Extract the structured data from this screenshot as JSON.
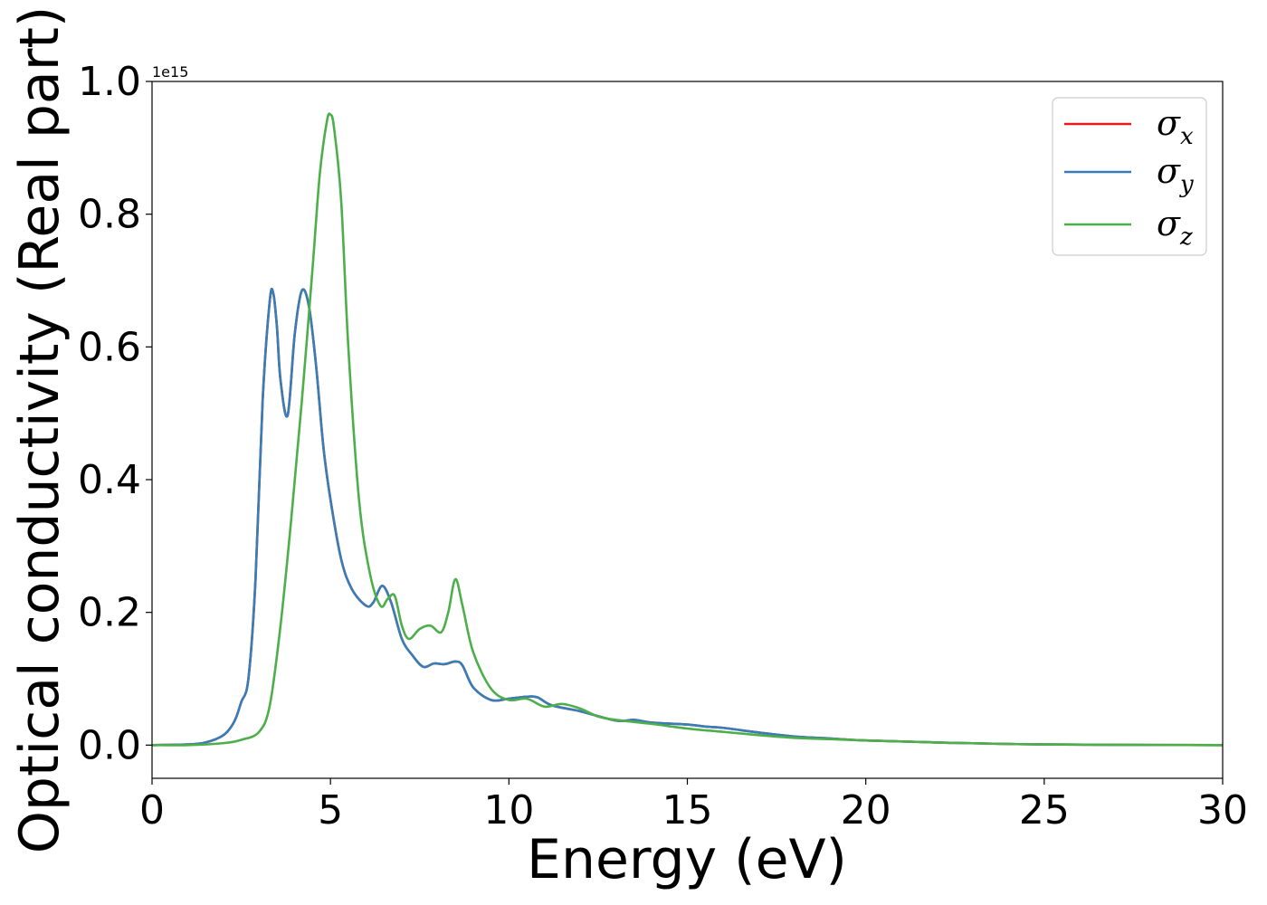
{
  "chart_data": {
    "type": "line",
    "title": "",
    "xlabel": "Energy (eV)",
    "ylabel": "Optical conductivity (Real part)",
    "y_offset_label": "1e15",
    "xlim": [
      0,
      30
    ],
    "ylim": [
      -0.05,
      1.0
    ],
    "xticks": [
      0,
      5,
      10,
      15,
      20,
      25,
      30
    ],
    "yticks": [
      0.0,
      0.2,
      0.4,
      0.6,
      0.8,
      1.0
    ],
    "xtick_labels": [
      "0",
      "5",
      "10",
      "15",
      "20",
      "25",
      "30"
    ],
    "ytick_labels": [
      "0.0",
      "0.2",
      "0.4",
      "0.6",
      "0.8",
      "1.0"
    ],
    "grid": false,
    "legend_position": "top-right",
    "series": [
      {
        "name": "σx",
        "base": "σ",
        "sub": "x",
        "color": "#e41a1c",
        "x": [
          0,
          1,
          1.5,
          2,
          2.3,
          2.5,
          2.7,
          2.9,
          3.1,
          3.3,
          3.4,
          3.5,
          3.6,
          3.8,
          4.0,
          4.2,
          4.4,
          4.6,
          4.8,
          5.0,
          5.3,
          5.6,
          6.0,
          6.2,
          6.45,
          6.7,
          7.0,
          7.3,
          7.6,
          7.9,
          8.2,
          8.5,
          8.7,
          9.0,
          9.5,
          10,
          10.5,
          10.8,
          11.2,
          12,
          13,
          13.5,
          14,
          15,
          15.5,
          16,
          17,
          18,
          19,
          20,
          22,
          25,
          30
        ],
        "y": [
          0.0,
          0.001,
          0.004,
          0.015,
          0.035,
          0.065,
          0.1,
          0.25,
          0.52,
          0.67,
          0.68,
          0.63,
          0.55,
          0.497,
          0.62,
          0.685,
          0.66,
          0.57,
          0.45,
          0.37,
          0.28,
          0.235,
          0.21,
          0.215,
          0.24,
          0.215,
          0.16,
          0.135,
          0.118,
          0.123,
          0.122,
          0.126,
          0.12,
          0.087,
          0.068,
          0.07,
          0.073,
          0.072,
          0.06,
          0.051,
          0.037,
          0.038,
          0.034,
          0.031,
          0.028,
          0.026,
          0.019,
          0.013,
          0.01,
          0.007,
          0.004,
          0.001,
          0.0
        ]
      },
      {
        "name": "σy",
        "base": "σ",
        "sub": "y",
        "color": "#377eb8",
        "x": [
          0,
          1,
          1.5,
          2,
          2.3,
          2.5,
          2.7,
          2.9,
          3.1,
          3.3,
          3.4,
          3.5,
          3.6,
          3.8,
          4.0,
          4.2,
          4.4,
          4.6,
          4.8,
          5.0,
          5.3,
          5.6,
          6.0,
          6.2,
          6.45,
          6.7,
          7.0,
          7.3,
          7.6,
          7.9,
          8.2,
          8.5,
          8.7,
          9.0,
          9.5,
          10,
          10.5,
          10.8,
          11.2,
          12,
          13,
          13.5,
          14,
          15,
          15.5,
          16,
          17,
          18,
          19,
          20,
          22,
          25,
          30
        ],
        "y": [
          0.0,
          0.001,
          0.004,
          0.015,
          0.035,
          0.065,
          0.1,
          0.25,
          0.52,
          0.67,
          0.68,
          0.63,
          0.55,
          0.497,
          0.62,
          0.685,
          0.66,
          0.57,
          0.45,
          0.37,
          0.28,
          0.235,
          0.21,
          0.215,
          0.24,
          0.215,
          0.16,
          0.135,
          0.118,
          0.123,
          0.122,
          0.126,
          0.12,
          0.087,
          0.068,
          0.07,
          0.073,
          0.072,
          0.06,
          0.051,
          0.037,
          0.038,
          0.034,
          0.031,
          0.028,
          0.026,
          0.019,
          0.013,
          0.01,
          0.007,
          0.004,
          0.001,
          0.0
        ]
      },
      {
        "name": "σz",
        "base": "σ",
        "sub": "z",
        "color": "#4daf4a",
        "x": [
          0,
          1,
          2,
          2.5,
          3.0,
          3.3,
          3.6,
          3.9,
          4.2,
          4.5,
          4.7,
          4.9,
          5.0,
          5.1,
          5.3,
          5.5,
          5.8,
          6.1,
          6.4,
          6.6,
          6.8,
          7.0,
          7.2,
          7.5,
          7.8,
          8.1,
          8.3,
          8.5,
          8.7,
          9.0,
          9.5,
          10,
          10.5,
          11,
          11.5,
          12,
          12.5,
          13,
          14,
          15,
          16,
          17,
          18,
          19,
          20,
          22,
          25,
          30
        ],
        "y": [
          0.0,
          0.0,
          0.003,
          0.008,
          0.02,
          0.06,
          0.18,
          0.34,
          0.52,
          0.72,
          0.86,
          0.94,
          0.95,
          0.93,
          0.82,
          0.6,
          0.37,
          0.26,
          0.21,
          0.22,
          0.225,
          0.18,
          0.16,
          0.175,
          0.18,
          0.17,
          0.2,
          0.25,
          0.21,
          0.14,
          0.085,
          0.068,
          0.07,
          0.058,
          0.062,
          0.055,
          0.043,
          0.038,
          0.032,
          0.025,
          0.02,
          0.015,
          0.011,
          0.009,
          0.007,
          0.004,
          0.001,
          0.0
        ]
      }
    ]
  }
}
